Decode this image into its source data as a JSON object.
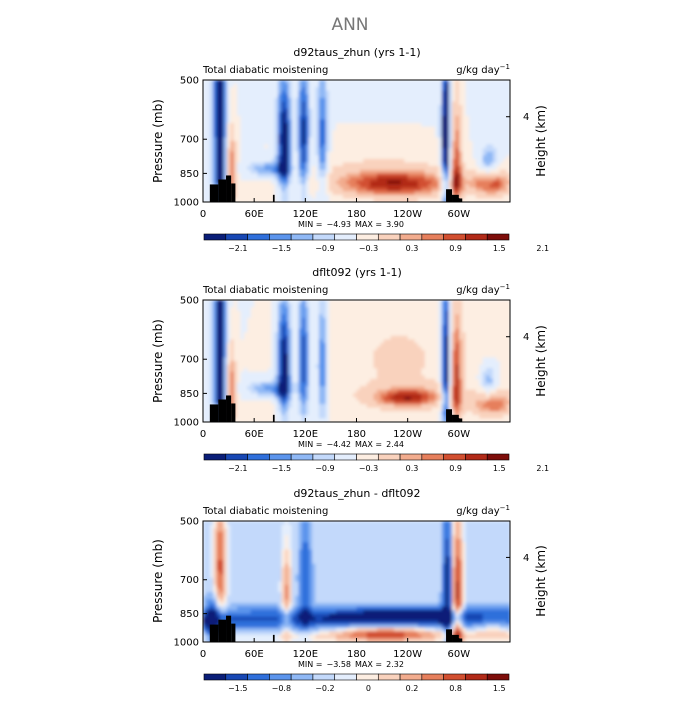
{
  "page_title": "ANN",
  "colors": {
    "scale": [
      "#0a1e78",
      "#1747b4",
      "#2f6fdb",
      "#5b94ec",
      "#8fb8f5",
      "#c3d9fb",
      "#e4eefd",
      "#fdeee2",
      "#f9d2bd",
      "#f2ac8e",
      "#e67f5c",
      "#d24f30",
      "#b22a18",
      "#7e0d0a"
    ]
  },
  "chart_data": [
    {
      "type": "heatmap",
      "title": "d92taus_zhun (yrs 1-1)",
      "left_label": "Total diabatic moistening",
      "units_base": "g/kg day",
      "units_exp": "−1",
      "ylabel": "Pressure (mb)",
      "y2label": "Height (km)",
      "y_ticks": [
        "500",
        "700",
        "850",
        "1000"
      ],
      "y2_ticks": [
        "4"
      ],
      "x_ticks": [
        "0",
        "60E",
        "120E",
        "180",
        "120W",
        "60W"
      ],
      "stats": {
        "min_label": "MIN =",
        "min": "−4.93",
        "max_label": "MAX =",
        "max": "3.90"
      },
      "colorbar_labels": [
        "−2.1",
        "−1.5",
        "−0.9",
        "−0.3",
        "0.3",
        "0.9",
        "1.5",
        "2.1"
      ],
      "field": "total_diabatic_moistening",
      "xlim": [
        0,
        360
      ],
      "ylim": [
        1000,
        500
      ]
    },
    {
      "type": "heatmap",
      "title": "dflt092 (yrs 1-1)",
      "left_label": "Total diabatic moistening",
      "units_base": "g/kg day",
      "units_exp": "−1",
      "ylabel": "Pressure (mb)",
      "y2label": "Height (km)",
      "y_ticks": [
        "500",
        "700",
        "850",
        "1000"
      ],
      "y2_ticks": [
        "4"
      ],
      "x_ticks": [
        "0",
        "60E",
        "120E",
        "180",
        "120W",
        "60W"
      ],
      "stats": {
        "min_label": "MIN =",
        "min": "−4.42",
        "max_label": "MAX =",
        "max": "2.44"
      },
      "colorbar_labels": [
        "−2.1",
        "−1.5",
        "−0.9",
        "−0.3",
        "0.3",
        "0.9",
        "1.5",
        "2.1"
      ],
      "field": "total_diabatic_moistening",
      "xlim": [
        0,
        360
      ],
      "ylim": [
        1000,
        500
      ]
    },
    {
      "type": "heatmap",
      "title": "d92taus_zhun - dflt092",
      "left_label": "Total diabatic moistening",
      "units_base": "g/kg day",
      "units_exp": "−1",
      "ylabel": "Pressure (mb)",
      "y2label": "Height (km)",
      "y_ticks": [
        "500",
        "700",
        "850",
        "1000"
      ],
      "y2_ticks": [
        "4"
      ],
      "x_ticks": [
        "0",
        "60E",
        "120E",
        "180",
        "120W",
        "60W"
      ],
      "stats": {
        "min_label": "MIN =",
        "min": "−3.58",
        "max_label": "MAX =",
        "max": "2.32"
      },
      "colorbar_labels": [
        "−1.5",
        "−0.8",
        "−0.2",
        "0",
        "0.2",
        "0.8",
        "1.5"
      ],
      "field": "difference",
      "xlim": [
        0,
        360
      ],
      "ylim": [
        1000,
        500
      ]
    }
  ]
}
